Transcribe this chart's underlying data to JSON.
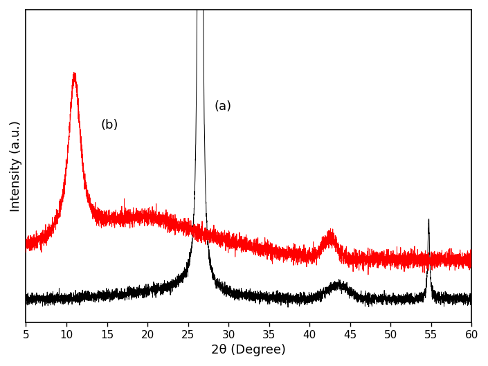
{
  "title": "",
  "xlabel": "2θ (Degree)",
  "ylabel": "Intensity (a.u.)",
  "xlim": [
    5,
    60
  ],
  "label_a": "(a)",
  "label_b": "(b)",
  "color_a": "#000000",
  "color_b": "#ff0000",
  "label_color": "#000000",
  "background_color": "#ffffff",
  "xticks": [
    5,
    10,
    15,
    20,
    25,
    30,
    35,
    40,
    45,
    50,
    55,
    60
  ],
  "figsize": [
    7.05,
    5.29
  ],
  "dpi": 100
}
